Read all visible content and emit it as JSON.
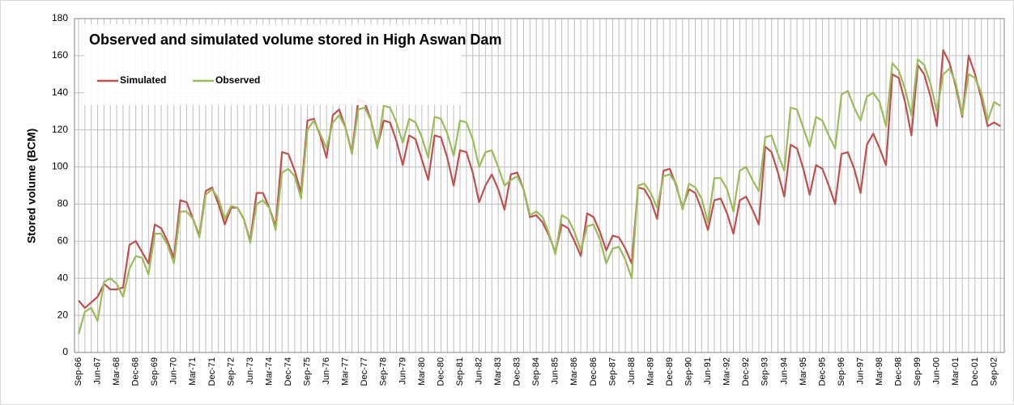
{
  "chart_data": {
    "type": "line",
    "title": "Observed and simulated volume stored in High Aswan Dam",
    "y_label": "Stored volume (BCM)",
    "categories": [
      "Sep-66",
      null,
      null,
      "Jun-67",
      null,
      null,
      "Mar-68",
      null,
      null,
      "Dec-68",
      null,
      null,
      "Sep-69",
      null,
      null,
      "Jun-70",
      null,
      null,
      "Mar-71",
      null,
      null,
      "Dec-71",
      null,
      null,
      "Sep-72",
      null,
      null,
      "Jun-73",
      null,
      null,
      "Mar-74",
      null,
      null,
      "Dec-74",
      null,
      null,
      "Sep-75",
      null,
      null,
      "Jun-76",
      null,
      null,
      "Mar-77",
      null,
      null,
      "Dec-77",
      null,
      null,
      "Sep-78",
      null,
      null,
      "Jun-79",
      null,
      null,
      "Mar-80",
      null,
      null,
      "Dec-80",
      null,
      null,
      "Sep-81",
      null,
      null,
      "Jun-82",
      null,
      null,
      "Mar-83",
      null,
      null,
      "Dec-83",
      null,
      null,
      "Sep-84",
      null,
      null,
      "Jun-85",
      null,
      null,
      "Mar-86",
      null,
      null,
      "Dec-86",
      null,
      null,
      "Sep-87",
      null,
      null,
      "Jun-88",
      null,
      null,
      "Mar-89",
      null,
      null,
      "Dec-89",
      null,
      null,
      "Sep-90",
      null,
      null,
      "Jun-91",
      null,
      null,
      "Mar-92",
      null,
      null,
      "Dec-92",
      null,
      null,
      "Sep-93",
      null,
      null,
      "Jun-94",
      null,
      null,
      "Mar-95",
      null,
      null,
      "Dec-95",
      null,
      null,
      "Sep-96",
      null,
      null,
      "Jun-97",
      null,
      null,
      "Mar-98",
      null,
      null,
      "Dec-98",
      null,
      null,
      "Sep-99",
      null,
      null,
      "Jun-00",
      null,
      null,
      "Mar-01",
      null,
      null,
      "Dec-01",
      null,
      null,
      "Sep-02",
      null
    ],
    "series": [
      {
        "name": "Simulated",
        "color": "#c0504d",
        "values": [
          28,
          24,
          27,
          30,
          37,
          34,
          34,
          35,
          58,
          60,
          54,
          48,
          69,
          67,
          60,
          51,
          82,
          81,
          72,
          63,
          87,
          89,
          80,
          69,
          78,
          78,
          72,
          60,
          86,
          86,
          78,
          68,
          108,
          107,
          98,
          86,
          125,
          126,
          117,
          105,
          128,
          131,
          121,
          108,
          136,
          135,
          125,
          111,
          125,
          124,
          114,
          101,
          117,
          115,
          104,
          93,
          117,
          116,
          105,
          90,
          109,
          108,
          97,
          81,
          90,
          96,
          88,
          77,
          96,
          97,
          88,
          73,
          74,
          70,
          63,
          54,
          69,
          67,
          60,
          52,
          75,
          73,
          65,
          55,
          63,
          62,
          56,
          48,
          89,
          88,
          82,
          72,
          98,
          99,
          90,
          78,
          88,
          86,
          77,
          66,
          82,
          83,
          75,
          64,
          82,
          84,
          77,
          69,
          111,
          108,
          97,
          84,
          112,
          110,
          99,
          85,
          101,
          99,
          90,
          80,
          107,
          108,
          99,
          86,
          112,
          118,
          110,
          101,
          150,
          148,
          135,
          117,
          155,
          150,
          138,
          122,
          163,
          156,
          143,
          127,
          160,
          150,
          137,
          122,
          124,
          122
        ]
      },
      {
        "name": "Observed",
        "color": "#9bbb59",
        "values": [
          10,
          22,
          24,
          17,
          38,
          40,
          37,
          30,
          45,
          52,
          51,
          42,
          64,
          64,
          58,
          48,
          76,
          76,
          72,
          62,
          85,
          88,
          83,
          72,
          79,
          78,
          72,
          59,
          80,
          82,
          78,
          66,
          97,
          99,
          95,
          83,
          120,
          125,
          118,
          110,
          124,
          128,
          121,
          107,
          131,
          132,
          125,
          110,
          133,
          132,
          124,
          113,
          126,
          124,
          116,
          105,
          127,
          126,
          118,
          106,
          125,
          124,
          115,
          100,
          108,
          109,
          100,
          90,
          93,
          95,
          88,
          74,
          76,
          73,
          64,
          53,
          74,
          72,
          65,
          55,
          68,
          69,
          61,
          48,
          56,
          57,
          50,
          40,
          90,
          91,
          86,
          78,
          95,
          96,
          91,
          77,
          91,
          89,
          83,
          70,
          94,
          94,
          88,
          76,
          98,
          100,
          93,
          87,
          116,
          117,
          107,
          98,
          132,
          131,
          121,
          111,
          127,
          125,
          117,
          110,
          139,
          141,
          132,
          125,
          138,
          140,
          135,
          122,
          156,
          152,
          142,
          128,
          158,
          155,
          145,
          130,
          150,
          153,
          145,
          128,
          150,
          148,
          140,
          125,
          135,
          133
        ]
      }
    ],
    "ylim": [
      0,
      180
    ],
    "yticks": [
      0,
      20,
      40,
      60,
      80,
      100,
      120,
      140,
      160,
      180
    ],
    "grid": true,
    "legend": "upper left"
  }
}
